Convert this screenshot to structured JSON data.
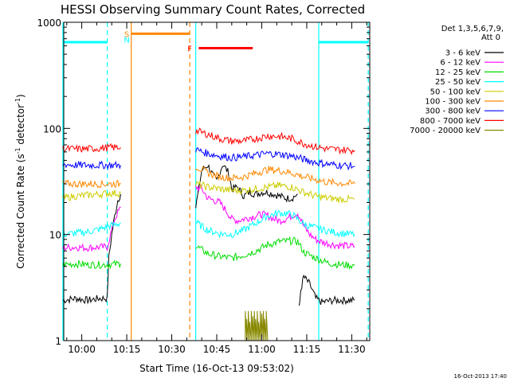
{
  "chart_data": {
    "type": "line",
    "title": "HESSI Observing Summary Count Rates, Corrected",
    "xlabel": "Start Time (16-Oct-13 09:53:02)",
    "ylabel_main": "Corrected Count Rate (s",
    "ylabel_sup1": "-1",
    "ylabel_mid": " detector",
    "ylabel_sup2": "-1",
    "ylabel_end": ")",
    "y_scale": "log",
    "ylim": [
      1,
      1000
    ],
    "xlim_minutes": [
      -6,
      96
    ],
    "x_ticks": [
      {
        "label": "10:00",
        "minute": 0
      },
      {
        "label": "10:15",
        "minute": 15
      },
      {
        "label": "10:30",
        "minute": 30
      },
      {
        "label": "10:45",
        "minute": 45
      },
      {
        "label": "11:00",
        "minute": 60
      },
      {
        "label": "11:15",
        "minute": 75
      },
      {
        "label": "11:30",
        "minute": 90
      }
    ],
    "y_ticks": [
      {
        "label": "1",
        "value": 1
      },
      {
        "label": "10",
        "value": 10
      },
      {
        "label": "100",
        "value": 100
      },
      {
        "label": "1000",
        "value": 1000
      }
    ],
    "legend_header": [
      "Det 1,3,5,6,7,9,",
      "Att 0"
    ],
    "legend_position": "right",
    "series": [
      {
        "name": "3 - 6 keV",
        "color": "#000000",
        "segments": [
          [
            [
              -6.3,
              2.4
            ],
            [
              -2,
              2.5
            ],
            [
              2,
              2.4
            ],
            [
              6,
              2.5
            ],
            [
              8.5,
              2.5
            ],
            [
              9,
              6
            ],
            [
              10,
              10
            ],
            [
              11,
              15
            ],
            [
              12,
              21
            ],
            [
              13,
              24
            ]
          ],
          [
            [
              38,
              18
            ],
            [
              40,
              40
            ],
            [
              42,
              45
            ],
            [
              44,
              35
            ],
            [
              45,
              32
            ],
            [
              47,
              46
            ],
            [
              49,
              38
            ],
            [
              50,
              27
            ],
            [
              52,
              28
            ],
            [
              54,
              23
            ],
            [
              56,
              25
            ],
            [
              58,
              24
            ],
            [
              60,
              25
            ],
            [
              62,
              25
            ],
            [
              64,
              24
            ],
            [
              66,
              23
            ],
            [
              68,
              22
            ],
            [
              70,
              22
            ],
            [
              72,
              24
            ]
          ],
          [
            [
              72.5,
              2
            ],
            [
              73,
              3
            ],
            [
              74,
              4
            ],
            [
              76,
              3.4
            ],
            [
              78,
              2.5
            ],
            [
              80,
              2.3
            ],
            [
              84,
              2.4
            ],
            [
              88,
              2.4
            ],
            [
              91,
              2.4
            ]
          ]
        ]
      },
      {
        "name": "6 - 12 keV",
        "color": "#ff00ff",
        "segments": [
          [
            [
              -6.3,
              7.5
            ],
            [
              -2,
              7.6
            ],
            [
              2,
              7.5
            ],
            [
              6,
              7.6
            ],
            [
              8.5,
              7.6
            ],
            [
              10,
              11
            ],
            [
              11,
              14
            ],
            [
              12,
              16
            ],
            [
              13,
              18
            ]
          ],
          [
            [
              38,
              28
            ],
            [
              40,
              27
            ],
            [
              42,
              22
            ],
            [
              44,
              21
            ],
            [
              46,
              20
            ],
            [
              48,
              17
            ],
            [
              50,
              14
            ],
            [
              52,
              13.5
            ],
            [
              54,
              14
            ],
            [
              56,
              14.5
            ],
            [
              58,
              15
            ],
            [
              60,
              15.5
            ],
            [
              62,
              15
            ],
            [
              64,
              14
            ],
            [
              66,
              13.5
            ],
            [
              68,
              14
            ],
            [
              70,
              15
            ],
            [
              72,
              16
            ],
            [
              74,
              12
            ],
            [
              76,
              10
            ],
            [
              78,
              9
            ],
            [
              80,
              8.5
            ],
            [
              84,
              8
            ],
            [
              88,
              7.8
            ],
            [
              91,
              7.7
            ]
          ]
        ]
      },
      {
        "name": "12 - 25 keV",
        "color": "#00dd00",
        "segments": [
          [
            [
              -6.3,
              5.2
            ],
            [
              -2,
              5.3
            ],
            [
              2,
              5.2
            ],
            [
              6,
              5.2
            ],
            [
              8.5,
              5.2
            ],
            [
              13,
              5.3
            ]
          ],
          [
            [
              38,
              7.8
            ],
            [
              42,
              6.6
            ],
            [
              46,
              6.2
            ],
            [
              50,
              6
            ],
            [
              54,
              6.4
            ],
            [
              58,
              7
            ],
            [
              62,
              8
            ],
            [
              66,
              8.6
            ],
            [
              70,
              8.7
            ],
            [
              72,
              8.6
            ],
            [
              74,
              6.8
            ],
            [
              78,
              6
            ],
            [
              82,
              5.4
            ],
            [
              86,
              5.2
            ],
            [
              91,
              5.1
            ]
          ]
        ]
      },
      {
        "name": "25 - 50 keV",
        "color": "#00ffff",
        "segments": [
          [
            [
              -6.3,
              10
            ],
            [
              -2,
              10.3
            ],
            [
              2,
              10.6
            ],
            [
              6,
              11.2
            ],
            [
              9,
              12
            ],
            [
              13,
              12.8
            ]
          ],
          [
            [
              38,
              13
            ],
            [
              42,
              11
            ],
            [
              46,
              10.2
            ],
            [
              50,
              10
            ],
            [
              54,
              11
            ],
            [
              58,
              12.8
            ],
            [
              62,
              15
            ],
            [
              66,
              16
            ],
            [
              70,
              15.5
            ],
            [
              72,
              14
            ],
            [
              74,
              12.5
            ],
            [
              78,
              11.5
            ],
            [
              82,
              10.8
            ],
            [
              86,
              10.3
            ],
            [
              91,
              10
            ]
          ]
        ]
      },
      {
        "name": "50 - 100 keV",
        "color": "#cccc00",
        "segments": [
          [
            [
              -6.3,
              22
            ],
            [
              -2,
              23
            ],
            [
              2,
              23.5
            ],
            [
              6,
              24
            ],
            [
              9,
              24.5
            ],
            [
              13,
              24.5
            ]
          ],
          [
            [
              38,
              30
            ],
            [
              42,
              28
            ],
            [
              46,
              27
            ],
            [
              50,
              26
            ],
            [
              54,
              26
            ],
            [
              58,
              27
            ],
            [
              62,
              28
            ],
            [
              66,
              29
            ],
            [
              70,
              28
            ],
            [
              74,
              25
            ],
            [
              78,
              23
            ],
            [
              82,
              22
            ],
            [
              86,
              21.5
            ],
            [
              91,
              21.5
            ]
          ]
        ]
      },
      {
        "name": "100 - 300 keV",
        "color": "#ff8800",
        "segments": [
          [
            [
              -6.3,
              30
            ],
            [
              -2,
              30
            ],
            [
              2,
              30
            ],
            [
              6,
              30
            ],
            [
              9,
              30
            ],
            [
              13,
              30
            ]
          ],
          [
            [
              38,
              44
            ],
            [
              42,
              38
            ],
            [
              46,
              35
            ],
            [
              50,
              34
            ],
            [
              54,
              35
            ],
            [
              58,
              38
            ],
            [
              62,
              41
            ],
            [
              66,
              40
            ],
            [
              70,
              38
            ],
            [
              74,
              35
            ],
            [
              78,
              33
            ],
            [
              82,
              31
            ],
            [
              86,
              30.5
            ],
            [
              91,
              30
            ]
          ]
        ]
      },
      {
        "name": "300 - 800 keV",
        "color": "#0000ff",
        "segments": [
          [
            [
              -6.3,
              46
            ],
            [
              -2,
              45
            ],
            [
              2,
              45
            ],
            [
              6,
              45
            ],
            [
              9,
              45
            ],
            [
              13,
              45
            ]
          ],
          [
            [
              38,
              63
            ],
            [
              42,
              58
            ],
            [
              46,
              55
            ],
            [
              50,
              53
            ],
            [
              54,
              54
            ],
            [
              58,
              56
            ],
            [
              62,
              58
            ],
            [
              66,
              57
            ],
            [
              70,
              55
            ],
            [
              74,
              51
            ],
            [
              78,
              48
            ],
            [
              82,
              46
            ],
            [
              86,
              45
            ],
            [
              91,
              44
            ]
          ]
        ]
      },
      {
        "name": "800 - 7000 keV",
        "color": "#ff0000",
        "segments": [
          [
            [
              -6.3,
              64
            ],
            [
              -2,
              64
            ],
            [
              2,
              64
            ],
            [
              6,
              65
            ],
            [
              9,
              66
            ],
            [
              13,
              66
            ]
          ],
          [
            [
              38,
              95
            ],
            [
              42,
              88
            ],
            [
              46,
              80
            ],
            [
              50,
              76
            ],
            [
              54,
              76
            ],
            [
              58,
              80
            ],
            [
              62,
              85
            ],
            [
              66,
              84
            ],
            [
              70,
              80
            ],
            [
              74,
              72
            ],
            [
              78,
              67
            ],
            [
              82,
              64
            ],
            [
              86,
              63
            ],
            [
              91,
              62
            ]
          ]
        ]
      },
      {
        "name": "7000 - 20000 keV",
        "color": "#888800",
        "segments": [
          [
            [
              54.5,
              1.0
            ],
            [
              54.5,
              1.9
            ],
            [
              55,
              1.0
            ],
            [
              55,
              1.6
            ],
            [
              55.5,
              1.0
            ],
            [
              55.5,
              1.9
            ],
            [
              56,
              1.0
            ],
            [
              56,
              1.5
            ],
            [
              56.5,
              1.0
            ],
            [
              56.5,
              1.9
            ],
            [
              57,
              1.0
            ],
            [
              57,
              1.7
            ],
            [
              57.5,
              1.0
            ],
            [
              57.5,
              1.9
            ],
            [
              58,
              1.0
            ],
            [
              58,
              1.6
            ],
            [
              58.5,
              1.0
            ],
            [
              58.5,
              1.9
            ],
            [
              59,
              1.0
            ],
            [
              59,
              1.5
            ],
            [
              59.5,
              1.0
            ],
            [
              59.5,
              1.9
            ],
            [
              60,
              1.0
            ],
            [
              60,
              1.8
            ],
            [
              60.5,
              1.0
            ],
            [
              60.5,
              1.9
            ],
            [
              61,
              1.0
            ],
            [
              61,
              1.6
            ],
            [
              61.5,
              1.0
            ],
            [
              61.5,
              1.9
            ],
            [
              62,
              1.0
            ]
          ]
        ]
      }
    ],
    "annotations": {
      "attenuator_bars": [
        {
          "color": "#00ffff",
          "start_min": -6.3,
          "end_min": 8.5,
          "value": 650
        },
        {
          "color": "#ff8800",
          "start_min": 16.5,
          "end_min": 36,
          "value": 780,
          "label": "S",
          "label_min": 15
        },
        {
          "color": "#ff0000",
          "start_min": 39,
          "end_min": 57,
          "value": 570,
          "label": "F",
          "label_min": 36
        },
        {
          "color": "#00ffff",
          "start_min": 79,
          "end_min": 95.5,
          "value": 650
        }
      ],
      "n_label": {
        "text": "N",
        "color": "#00ffff",
        "minute": 15,
        "value": 690
      },
      "vertical_lines": [
        {
          "minute": -6.3,
          "color": "#00ffff",
          "dashed": false
        },
        {
          "minute": 8.5,
          "color": "#00ffff",
          "dashed": true
        },
        {
          "minute": 16.5,
          "color": "#ff8800",
          "dashed": false
        },
        {
          "minute": 36,
          "color": "#ff8800",
          "dashed": true
        },
        {
          "minute": 38,
          "color": "#00ffff",
          "dashed": false
        },
        {
          "minute": 79,
          "color": "#00ffff",
          "dashed": false
        },
        {
          "minute": 95.5,
          "color": "#00ffff",
          "dashed": true
        }
      ]
    },
    "grid": false
  },
  "timestamp": "16-Oct-2013 17:40"
}
